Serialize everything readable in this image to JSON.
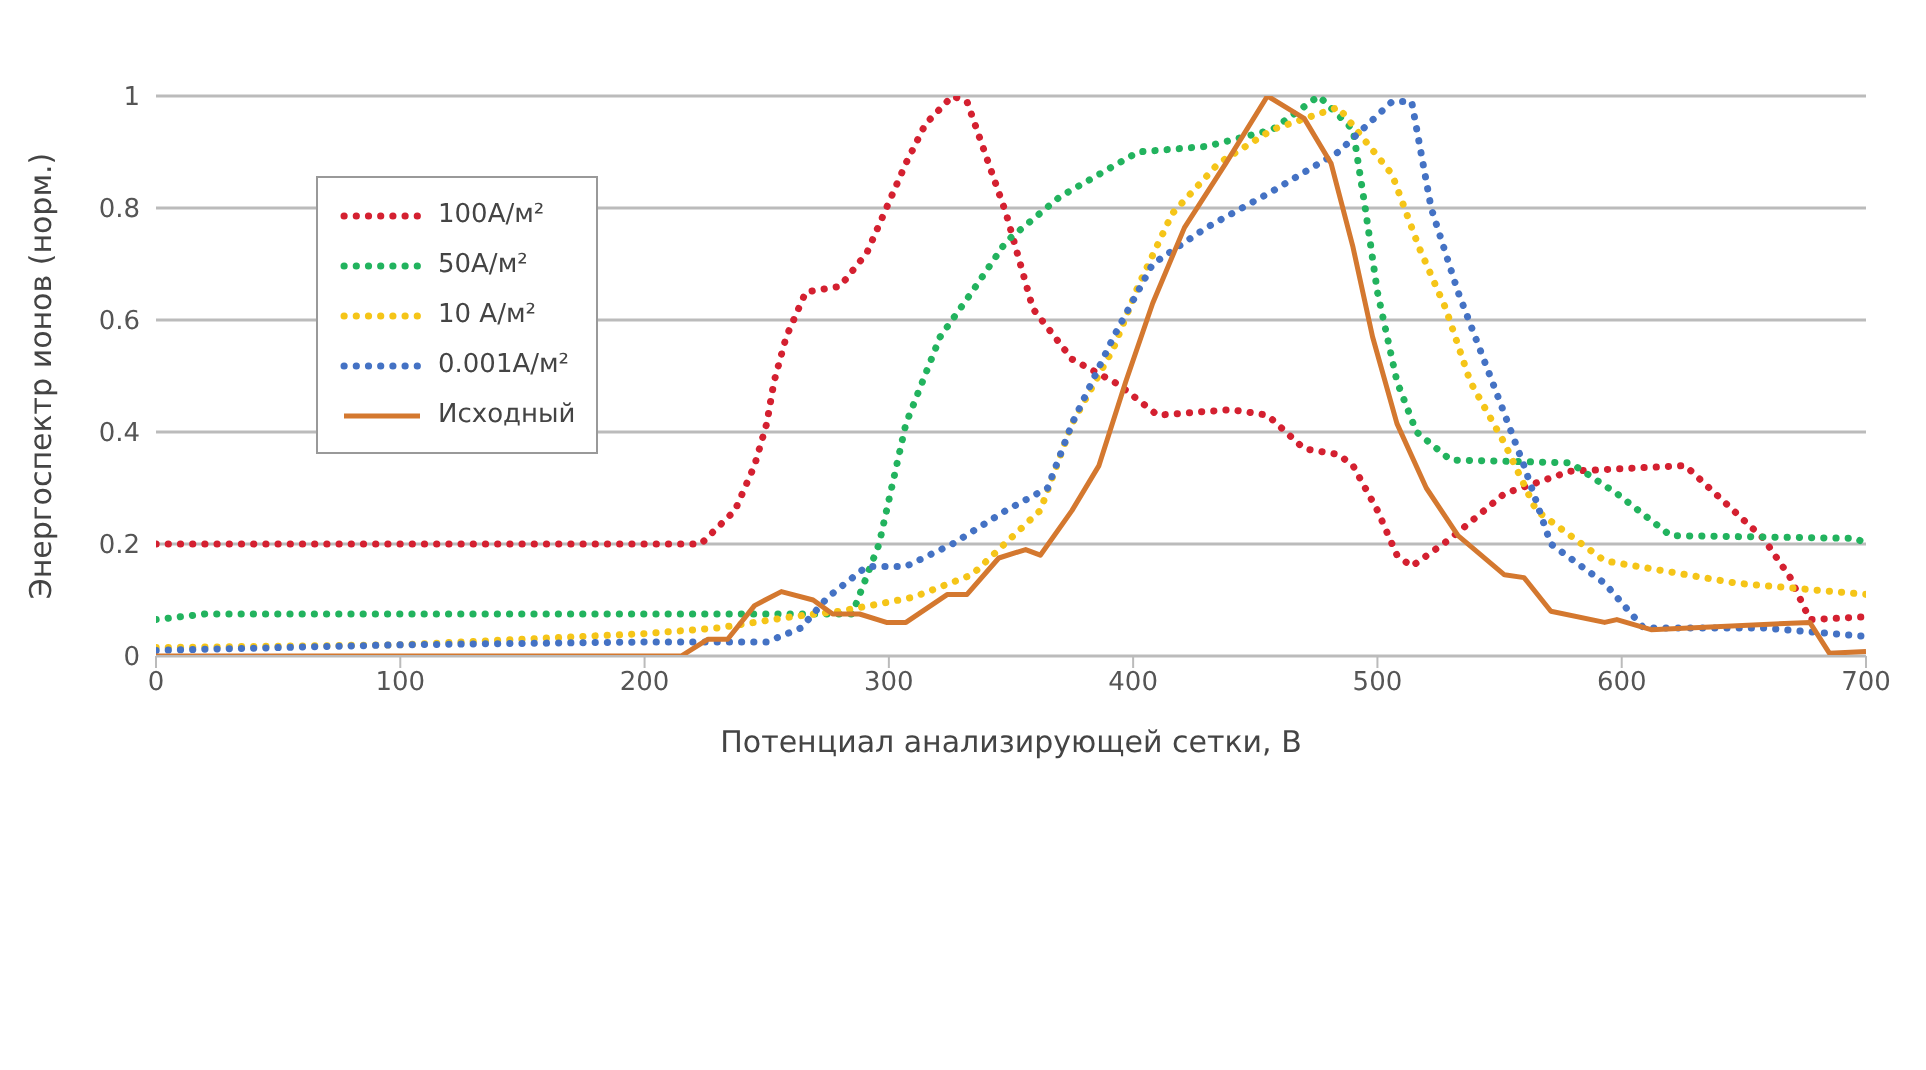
{
  "chart_data": {
    "type": "line",
    "xlabel": "Потенциал анализирующей сетки, В",
    "ylabel": "Энергоспектр ионов (норм.)",
    "xlim": [
      0,
      700
    ],
    "xticks": [
      0,
      100,
      200,
      300,
      400,
      500,
      600,
      700
    ],
    "ylim": [
      0,
      1
    ],
    "yticks": [
      0,
      0.2,
      0.4,
      0.6,
      0.8,
      1
    ],
    "grid": "y",
    "legend": "top left",
    "marker": "none",
    "series": [
      {
        "name": "100A/м²",
        "color": "#d42030",
        "line_style": "dotted",
        "x": [
          0,
          100,
          200,
          223,
          237,
          245,
          250,
          253,
          258,
          266,
          280,
          291,
          299,
          307,
          315,
          326,
          332,
          348,
          359,
          375,
          394,
          410,
          440,
          455,
          470,
          484,
          490,
          500,
          508,
          514,
          530,
          552,
          579,
          626,
          642,
          658,
          669,
          677,
          700
        ],
        "values": [
          0.2,
          0.2,
          0.2,
          0.2,
          0.26,
          0.34,
          0.415,
          0.49,
          0.57,
          0.65,
          0.66,
          0.72,
          0.8,
          0.88,
          0.95,
          1,
          0.99,
          0.79,
          0.62,
          0.53,
          0.485,
          0.43,
          0.44,
          0.43,
          0.37,
          0.36,
          0.34,
          0.26,
          0.18,
          0.16,
          0.21,
          0.29,
          0.33,
          0.34,
          0.275,
          0.21,
          0.14,
          0.065,
          0.07
        ]
      },
      {
        "name": "50A/м²",
        "color": "#22b35e",
        "line_style": "dotted",
        "x": [
          0,
          20,
          100,
          200,
          285,
          296,
          307,
          321,
          334,
          348,
          370,
          402,
          430,
          457,
          476,
          490,
          495,
          500,
          508,
          516,
          530,
          579,
          598,
          620,
          696,
          700
        ],
        "values": [
          0.065,
          0.075,
          0.075,
          0.075,
          0.075,
          0.2,
          0.415,
          0.57,
          0.65,
          0.74,
          0.82,
          0.9,
          0.91,
          0.94,
          1,
          0.94,
          0.8,
          0.65,
          0.49,
          0.4,
          0.35,
          0.345,
          0.29,
          0.215,
          0.21,
          0.2
        ]
      },
      {
        "name": "10 A/м²",
        "color": "#f5c518",
        "line_style": "dotted",
        "x": [
          0,
          100,
          200,
          230,
          260,
          280,
          296,
          310,
          334,
          362,
          375,
          392,
          402,
          416,
          435,
          457,
          484,
          506,
          517,
          528,
          538,
          552,
          565,
          593,
          647,
          700
        ],
        "values": [
          0.015,
          0.02,
          0.04,
          0.05,
          0.07,
          0.08,
          0.093,
          0.105,
          0.145,
          0.26,
          0.415,
          0.55,
          0.66,
          0.79,
          0.88,
          0.94,
          0.98,
          0.86,
          0.73,
          0.62,
          0.49,
          0.38,
          0.26,
          0.17,
          0.13,
          0.11
        ]
      },
      {
        "name": "0.001A/м²",
        "color": "#4472c4",
        "line_style": "dotted",
        "x": [
          0,
          100,
          200,
          250,
          264,
          275,
          291,
          307,
          326,
          348,
          365,
          375,
          392,
          408,
          430,
          457,
          484,
          506,
          514,
          522,
          533,
          547,
          560,
          571,
          593,
          609,
          658,
          700
        ],
        "values": [
          0.01,
          0.02,
          0.025,
          0.025,
          0.05,
          0.105,
          0.16,
          0.16,
          0.2,
          0.26,
          0.3,
          0.415,
          0.57,
          0.7,
          0.765,
          0.83,
          0.9,
          0.99,
          0.99,
          0.8,
          0.65,
          0.49,
          0.34,
          0.2,
          0.13,
          0.05,
          0.05,
          0.035
        ]
      },
      {
        "name": "Исходный",
        "color": "#d4782f",
        "line_style": "solid",
        "x": [
          0,
          215,
          226,
          234,
          245,
          256,
          269,
          277,
          288,
          299,
          307,
          324,
          332,
          345,
          356,
          362,
          375,
          386,
          397,
          408,
          421,
          438,
          455,
          470,
          481,
          490,
          498,
          508,
          520,
          533,
          552,
          560,
          571,
          593,
          598,
          612,
          677,
          685,
          700
        ],
        "values": [
          0,
          0,
          0.03,
          0.03,
          0.09,
          0.115,
          0.1,
          0.075,
          0.075,
          0.06,
          0.06,
          0.11,
          0.11,
          0.175,
          0.19,
          0.18,
          0.26,
          0.34,
          0.49,
          0.63,
          0.765,
          0.88,
          1,
          0.96,
          0.88,
          0.73,
          0.57,
          0.415,
          0.3,
          0.215,
          0.145,
          0.14,
          0.08,
          0.06,
          0.065,
          0.047,
          0.06,
          0.005,
          0.008
        ]
      }
    ]
  }
}
